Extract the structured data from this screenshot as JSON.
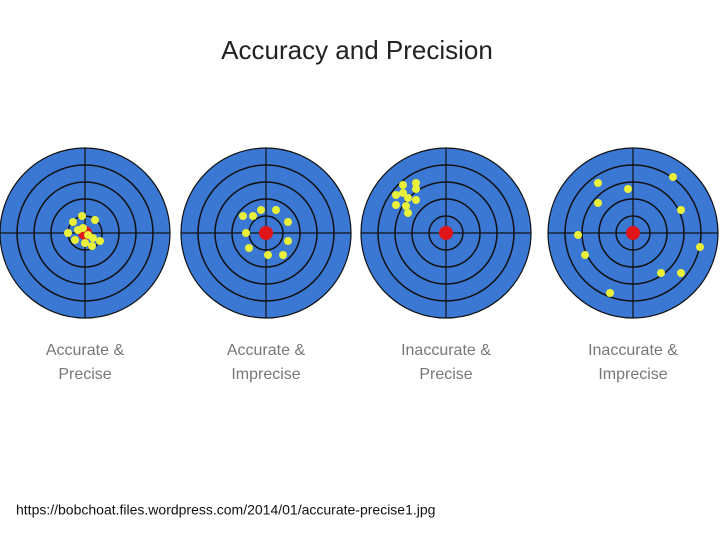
{
  "title": "Accuracy and Precision",
  "targets": [
    {
      "label_lines": [
        "Accurate &",
        "Precise"
      ]
    },
    {
      "label_lines": [
        "Accurate &",
        "Imprecise"
      ]
    },
    {
      "label_lines": [
        "Inaccurate &",
        "Precise"
      ]
    },
    {
      "label_lines": [
        "Inaccurate &",
        "Imprecise"
      ]
    }
  ],
  "source": "https://bobchoat.files.wordpress.com/2014/01/accurate-precise1.jpg"
}
